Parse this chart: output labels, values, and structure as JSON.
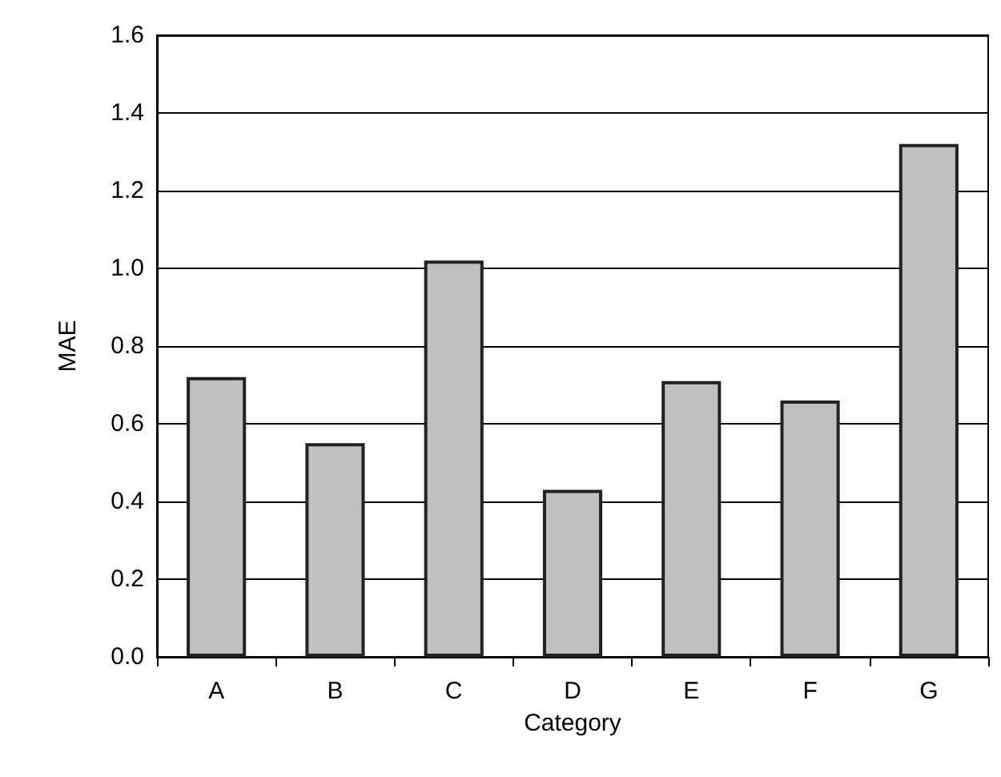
{
  "chart_data": {
    "type": "bar",
    "xlabel": "Category",
    "ylabel": "MAE",
    "categories": [
      "A",
      "B",
      "C",
      "D",
      "E",
      "F",
      "G"
    ],
    "values": [
      0.72,
      0.55,
      1.02,
      0.43,
      0.71,
      0.66,
      1.32
    ],
    "color": "#c0c0c0",
    "ylim": [
      0,
      1.6
    ],
    "yticks": [
      {
        "value": 0,
        "label": "0.0"
      },
      {
        "value": 0.2,
        "label": "0.2"
      },
      {
        "value": 0.4,
        "label": "0.4"
      },
      {
        "value": 0.6,
        "label": "0.6"
      },
      {
        "value": 0.8,
        "label": "0.8"
      },
      {
        "value": 1,
        "label": "1.0"
      },
      {
        "value": 1.2,
        "label": "1.2"
      },
      {
        "value": 1.4,
        "label": "1.4"
      },
      {
        "value": 1.6,
        "label": "1.6"
      }
    ],
    "grid": "y"
  }
}
